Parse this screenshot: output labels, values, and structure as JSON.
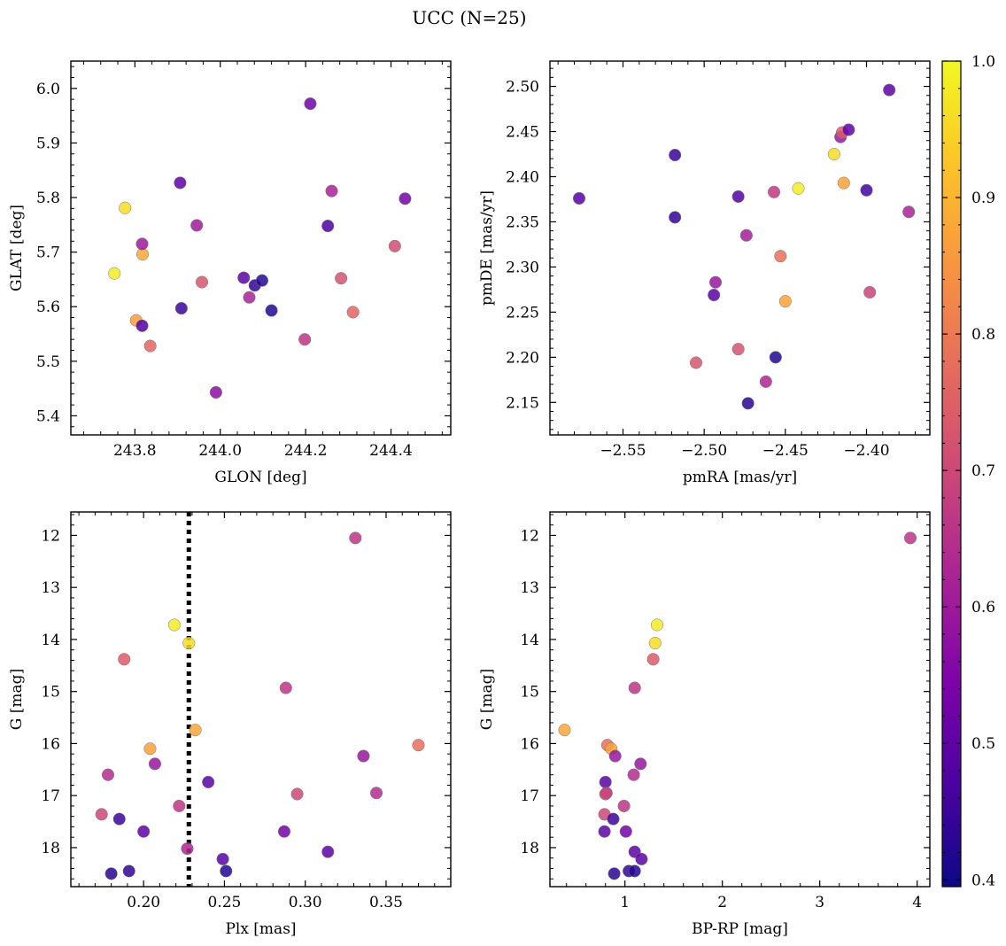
{
  "figure": {
    "title": "UCC (N=25)"
  },
  "colorbar": {
    "ticks": [
      "0.4",
      "0.5",
      "0.6",
      "0.7",
      "0.8",
      "0.9",
      "1.0"
    ],
    "range": [
      0.395,
      1.0
    ],
    "colormap": "plasma"
  },
  "chart_data": [
    {
      "type": "scatter",
      "xlabel": "GLON [deg]",
      "ylabel": "GLAT [deg]",
      "xlim": [
        243.65,
        244.54
      ],
      "ylim": [
        5.365,
        6.05
      ],
      "xticks": [
        243.8,
        244.0,
        244.2,
        244.4
      ],
      "xtick_labels": [
        "243.8",
        "244.0",
        "244.2",
        "244.4"
      ],
      "yticks": [
        5.4,
        5.5,
        5.6,
        5.7,
        5.8,
        5.9,
        6.0
      ],
      "ytick_labels": [
        "5.4",
        "5.5",
        "5.6",
        "5.7",
        "5.8",
        "5.9",
        "6.0"
      ],
      "points": [
        {
          "x": 243.752,
          "y": 5.661,
          "c": 0.98
        },
        {
          "x": 243.777,
          "y": 5.781,
          "c": 0.96
        },
        {
          "x": 243.803,
          "y": 5.575,
          "c": 0.86
        },
        {
          "x": 243.818,
          "y": 5.696,
          "c": 0.88
        },
        {
          "x": 243.817,
          "y": 5.715,
          "c": 0.6
        },
        {
          "x": 243.817,
          "y": 5.565,
          "c": 0.48
        },
        {
          "x": 243.836,
          "y": 5.528,
          "c": 0.76
        },
        {
          "x": 243.906,
          "y": 5.827,
          "c": 0.5
        },
        {
          "x": 243.909,
          "y": 5.597,
          "c": 0.45
        },
        {
          "x": 243.945,
          "y": 5.749,
          "c": 0.6
        },
        {
          "x": 243.957,
          "y": 5.645,
          "c": 0.73
        },
        {
          "x": 243.99,
          "y": 5.443,
          "c": 0.57
        },
        {
          "x": 244.055,
          "y": 5.653,
          "c": 0.49
        },
        {
          "x": 244.068,
          "y": 5.617,
          "c": 0.62
        },
        {
          "x": 244.081,
          "y": 5.639,
          "c": 0.44
        },
        {
          "x": 244.098,
          "y": 5.648,
          "c": 0.42
        },
        {
          "x": 244.12,
          "y": 5.593,
          "c": 0.42
        },
        {
          "x": 244.198,
          "y": 5.54,
          "c": 0.66
        },
        {
          "x": 244.211,
          "y": 5.972,
          "c": 0.52
        },
        {
          "x": 244.252,
          "y": 5.748,
          "c": 0.47
        },
        {
          "x": 244.261,
          "y": 5.812,
          "c": 0.62
        },
        {
          "x": 244.283,
          "y": 5.652,
          "c": 0.72
        },
        {
          "x": 244.311,
          "y": 5.59,
          "c": 0.76
        },
        {
          "x": 244.409,
          "y": 5.711,
          "c": 0.71
        },
        {
          "x": 244.433,
          "y": 5.798,
          "c": 0.53
        }
      ]
    },
    {
      "type": "scatter",
      "xlabel": "pmRA [mas/yr]",
      "ylabel": "pmDE [mas/yr]",
      "xlim": [
        -2.595,
        -2.361
      ],
      "ylim": [
        2.114,
        2.528
      ],
      "xticks": [
        -2.55,
        -2.5,
        -2.45,
        -2.4
      ],
      "xtick_labels": [
        "−2.55",
        "−2.50",
        "−2.45",
        "−2.40"
      ],
      "yticks": [
        2.15,
        2.2,
        2.25,
        2.3,
        2.35,
        2.4,
        2.45,
        2.5
      ],
      "ytick_labels": [
        "2.15",
        "2.20",
        "2.25",
        "2.30",
        "2.35",
        "2.40",
        "2.45",
        "2.50"
      ],
      "points": [
        {
          "x": -2.577,
          "y": 2.376,
          "c": 0.49
        },
        {
          "x": -2.518,
          "y": 2.424,
          "c": 0.45
        },
        {
          "x": -2.518,
          "y": 2.355,
          "c": 0.44
        },
        {
          "x": -2.505,
          "y": 2.194,
          "c": 0.73
        },
        {
          "x": -2.493,
          "y": 2.283,
          "c": 0.59
        },
        {
          "x": -2.494,
          "y": 2.269,
          "c": 0.49
        },
        {
          "x": -2.479,
          "y": 2.378,
          "c": 0.48
        },
        {
          "x": -2.479,
          "y": 2.209,
          "c": 0.72
        },
        {
          "x": -2.474,
          "y": 2.335,
          "c": 0.61
        },
        {
          "x": -2.473,
          "y": 2.149,
          "c": 0.43
        },
        {
          "x": -2.462,
          "y": 2.173,
          "c": 0.63
        },
        {
          "x": -2.457,
          "y": 2.383,
          "c": 0.67
        },
        {
          "x": -2.456,
          "y": 2.2,
          "c": 0.42
        },
        {
          "x": -2.453,
          "y": 2.312,
          "c": 0.78
        },
        {
          "x": -2.45,
          "y": 2.262,
          "c": 0.87
        },
        {
          "x": -2.442,
          "y": 2.387,
          "c": 0.98
        },
        {
          "x": -2.42,
          "y": 2.425,
          "c": 0.96
        },
        {
          "x": -2.416,
          "y": 2.444,
          "c": 0.59
        },
        {
          "x": -2.415,
          "y": 2.449,
          "c": 0.74
        },
        {
          "x": -2.414,
          "y": 2.393,
          "c": 0.87
        },
        {
          "x": -2.411,
          "y": 2.452,
          "c": 0.5
        },
        {
          "x": -2.4,
          "y": 2.385,
          "c": 0.46
        },
        {
          "x": -2.398,
          "y": 2.272,
          "c": 0.69
        },
        {
          "x": -2.386,
          "y": 2.496,
          "c": 0.5
        },
        {
          "x": -2.374,
          "y": 2.361,
          "c": 0.62
        }
      ]
    },
    {
      "type": "scatter",
      "xlabel": "Plx [mas]",
      "ylabel": "G [mag]",
      "xlim": [
        0.155,
        0.39
      ],
      "ylim": [
        18.75,
        11.55
      ],
      "y_inverted": true,
      "vline": {
        "x": 0.228,
        "style": "dotted"
      },
      "xticks": [
        0.2,
        0.25,
        0.3,
        0.35
      ],
      "xtick_labels": [
        "0.20",
        "0.25",
        "0.30",
        "0.35"
      ],
      "yticks": [
        12,
        13,
        14,
        15,
        16,
        17,
        18
      ],
      "ytick_labels": [
        "12",
        "13",
        "14",
        "15",
        "16",
        "17",
        "18"
      ],
      "points": [
        {
          "x": 0.331,
          "y": 12.05,
          "c": 0.66
        },
        {
          "x": 0.219,
          "y": 13.72,
          "c": 0.98
        },
        {
          "x": 0.228,
          "y": 14.07,
          "c": 0.96
        },
        {
          "x": 0.188,
          "y": 14.38,
          "c": 0.74
        },
        {
          "x": 0.288,
          "y": 14.93,
          "c": 0.66
        },
        {
          "x": 0.232,
          "y": 15.74,
          "c": 0.88
        },
        {
          "x": 0.37,
          "y": 16.03,
          "c": 0.78
        },
        {
          "x": 0.204,
          "y": 16.1,
          "c": 0.87
        },
        {
          "x": 0.336,
          "y": 16.24,
          "c": 0.59
        },
        {
          "x": 0.207,
          "y": 16.39,
          "c": 0.59
        },
        {
          "x": 0.178,
          "y": 16.6,
          "c": 0.64
        },
        {
          "x": 0.24,
          "y": 16.74,
          "c": 0.49
        },
        {
          "x": 0.344,
          "y": 16.95,
          "c": 0.64
        },
        {
          "x": 0.295,
          "y": 16.97,
          "c": 0.7
        },
        {
          "x": 0.222,
          "y": 17.2,
          "c": 0.66
        },
        {
          "x": 0.174,
          "y": 17.36,
          "c": 0.7
        },
        {
          "x": 0.185,
          "y": 17.45,
          "c": 0.45
        },
        {
          "x": 0.2,
          "y": 17.69,
          "c": 0.5
        },
        {
          "x": 0.287,
          "y": 17.69,
          "c": 0.53
        },
        {
          "x": 0.227,
          "y": 18.02,
          "c": 0.63
        },
        {
          "x": 0.314,
          "y": 18.08,
          "c": 0.5
        },
        {
          "x": 0.249,
          "y": 18.22,
          "c": 0.49
        },
        {
          "x": 0.191,
          "y": 18.45,
          "c": 0.44
        },
        {
          "x": 0.251,
          "y": 18.45,
          "c": 0.42
        },
        {
          "x": 0.18,
          "y": 18.5,
          "c": 0.43
        }
      ]
    },
    {
      "type": "scatter",
      "xlabel": "BP-RP [mag]",
      "ylabel": "G [mag]",
      "xlim": [
        0.23,
        4.13
      ],
      "ylim": [
        18.75,
        11.55
      ],
      "y_inverted": true,
      "xticks": [
        1,
        2,
        3,
        4
      ],
      "xtick_labels": [
        "1",
        "2",
        "3",
        "4"
      ],
      "yticks": [
        12,
        13,
        14,
        15,
        16,
        17,
        18
      ],
      "ytick_labels": [
        "12",
        "13",
        "14",
        "15",
        "16",
        "17",
        "18"
      ],
      "points": [
        {
          "x": 3.93,
          "y": 12.05,
          "c": 0.66
        },
        {
          "x": 1.33,
          "y": 13.72,
          "c": 0.98
        },
        {
          "x": 1.31,
          "y": 14.07,
          "c": 0.96
        },
        {
          "x": 1.29,
          "y": 14.38,
          "c": 0.74
        },
        {
          "x": 1.1,
          "y": 14.93,
          "c": 0.66
        },
        {
          "x": 0.38,
          "y": 15.74,
          "c": 0.88
        },
        {
          "x": 0.82,
          "y": 16.03,
          "c": 0.78
        },
        {
          "x": 0.86,
          "y": 16.1,
          "c": 0.87
        },
        {
          "x": 0.9,
          "y": 16.24,
          "c": 0.59
        },
        {
          "x": 1.16,
          "y": 16.39,
          "c": 0.59
        },
        {
          "x": 1.09,
          "y": 16.6,
          "c": 0.64
        },
        {
          "x": 0.8,
          "y": 16.74,
          "c": 0.49
        },
        {
          "x": 0.81,
          "y": 16.95,
          "c": 0.64
        },
        {
          "x": 0.8,
          "y": 16.97,
          "c": 0.7
        },
        {
          "x": 0.99,
          "y": 17.2,
          "c": 0.66
        },
        {
          "x": 0.79,
          "y": 17.36,
          "c": 0.7
        },
        {
          "x": 0.88,
          "y": 17.45,
          "c": 0.45
        },
        {
          "x": 0.79,
          "y": 17.69,
          "c": 0.5
        },
        {
          "x": 1.01,
          "y": 17.69,
          "c": 0.53
        },
        {
          "x": 1.1,
          "y": 18.08,
          "c": 0.5
        },
        {
          "x": 1.17,
          "y": 18.22,
          "c": 0.49
        },
        {
          "x": 1.04,
          "y": 18.45,
          "c": 0.44
        },
        {
          "x": 1.1,
          "y": 18.45,
          "c": 0.42
        },
        {
          "x": 0.89,
          "y": 18.5,
          "c": 0.43
        }
      ]
    }
  ]
}
